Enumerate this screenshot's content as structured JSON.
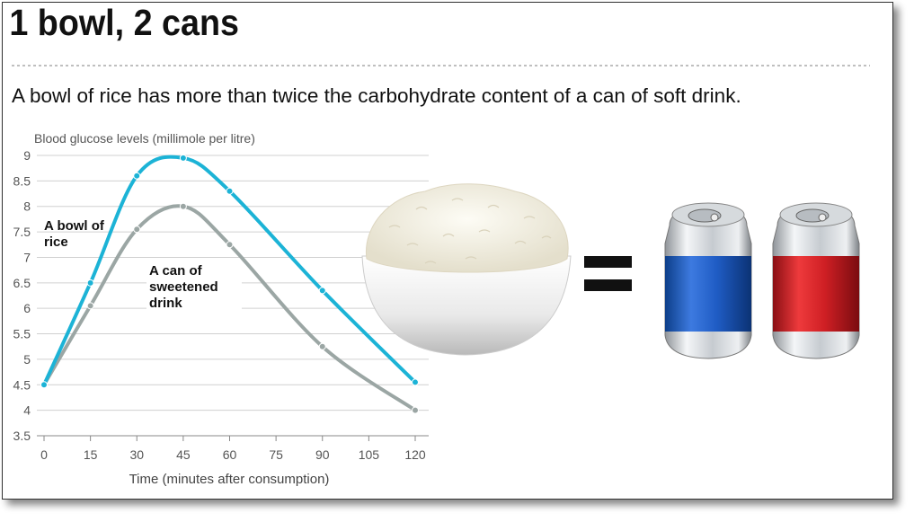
{
  "chart_data": {
    "type": "line",
    "title": "1 bowl, 2 cans",
    "subtitle": "A bowl of rice has more than twice the carbohydrate content of a can of  soft drink.",
    "y_label": "Blood glucose levels (millimole per litre)",
    "x_label": "Time (minutes after consumption)",
    "x": [
      0,
      15,
      30,
      45,
      60,
      90,
      120
    ],
    "series": [
      {
        "name": "A bowl of rice",
        "color": "#1cb3d6",
        "values": [
          4.5,
          6.5,
          8.6,
          8.95,
          8.3,
          6.35,
          4.55
        ]
      },
      {
        "name": "A can of sweetened drink",
        "color": "#9ba6a4",
        "values": [
          4.5,
          6.05,
          7.55,
          8.0,
          7.25,
          5.25,
          4.0
        ]
      }
    ],
    "xlim": [
      0,
      120
    ],
    "xticks": [
      0,
      15,
      30,
      45,
      60,
      75,
      90,
      105,
      120
    ],
    "ylim": [
      3.5,
      9
    ],
    "yticks": [
      3.5,
      4,
      4.5,
      5,
      5.5,
      6,
      6.5,
      7,
      7.5,
      8,
      8.5,
      9
    ],
    "grid": true
  }
}
